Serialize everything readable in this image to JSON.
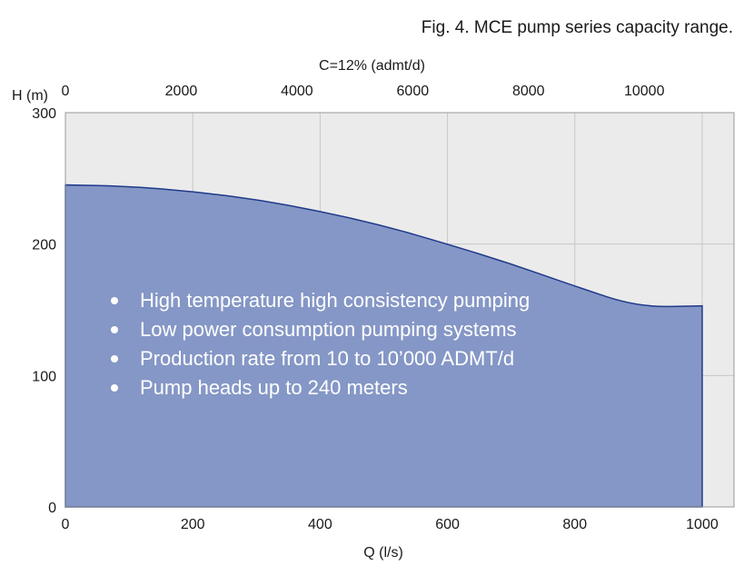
{
  "caption": "Fig. 4. MCE pump series capacity range.",
  "chart_data": {
    "type": "area",
    "xlabel": "Q (l/s)",
    "ylabel": "H (m)",
    "x2label": "C=12% (admt/d)",
    "xlim": [
      0,
      1050
    ],
    "ylim": [
      0,
      300
    ],
    "x_ticks": [
      0,
      200,
      400,
      600,
      800,
      1000
    ],
    "y_ticks": [
      0,
      100,
      200,
      300
    ],
    "x2_ticks": [
      0,
      2000,
      4000,
      6000,
      8000,
      10000
    ],
    "x2_per_x": 11,
    "grid": true,
    "colors": {
      "plot_bg": "#ebebeb",
      "area_fill": "#8597c6",
      "area_stroke": "#1f3a8a",
      "grid": "#c8c8c8",
      "text_on_area": "#ffffff"
    },
    "series": [
      {
        "x": [
          0,
          100,
          200,
          300,
          400,
          500,
          600,
          700,
          800,
          900,
          1000
        ],
        "y": [
          245,
          244,
          240,
          234,
          225,
          214,
          200,
          185,
          168,
          152,
          153
        ]
      }
    ],
    "annotations": [
      "High temperature high consistency pumping",
      "Low power consumption pumping systems",
      "Production rate from 10 to 10’000 ADMT/d",
      "Pump heads up to 240 meters"
    ]
  }
}
